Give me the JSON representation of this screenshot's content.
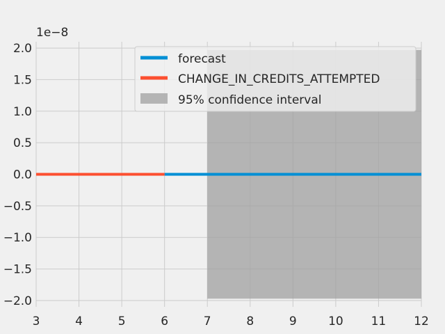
{
  "chart_data": {
    "type": "line",
    "title": "",
    "xlabel": "",
    "ylabel": "",
    "y_offset_label": "1e−8",
    "xlim": [
      3,
      12
    ],
    "ylim": [
      -2.1,
      2.1
    ],
    "x_ticks": [
      3,
      4,
      5,
      6,
      7,
      8,
      9,
      10,
      11,
      12
    ],
    "x_tick_labels": [
      "3",
      "4",
      "5",
      "6",
      "7",
      "8",
      "9",
      "10",
      "11",
      "12"
    ],
    "y_ticks": [
      -2.0,
      -1.5,
      -1.0,
      -0.5,
      0.0,
      0.5,
      1.0,
      1.5,
      2.0
    ],
    "y_tick_labels": [
      "−2.0",
      "−1.5",
      "−1.0",
      "−0.5",
      "0.0",
      "0.5",
      "1.0",
      "1.5",
      "2.0"
    ],
    "grid": true,
    "legend_position": "top-right",
    "series": [
      {
        "name": "forecast",
        "color": "#008fd5",
        "x": [
          6,
          7,
          8,
          9,
          10,
          11,
          12
        ],
        "y": [
          0,
          0,
          0,
          0,
          0,
          0,
          0
        ]
      },
      {
        "name": "CHANGE_IN_CREDITS_ATTEMPTED",
        "color": "#fc4f30",
        "x": [
          3,
          4,
          5,
          6
        ],
        "y": [
          0,
          0,
          0,
          0
        ]
      }
    ],
    "confidence_interval": {
      "name": "95% confidence interval",
      "color": "#a0a0a0",
      "x": [
        7,
        12
      ],
      "lower": [
        -1.97,
        -1.97
      ],
      "upper": [
        1.97,
        1.97
      ]
    }
  }
}
